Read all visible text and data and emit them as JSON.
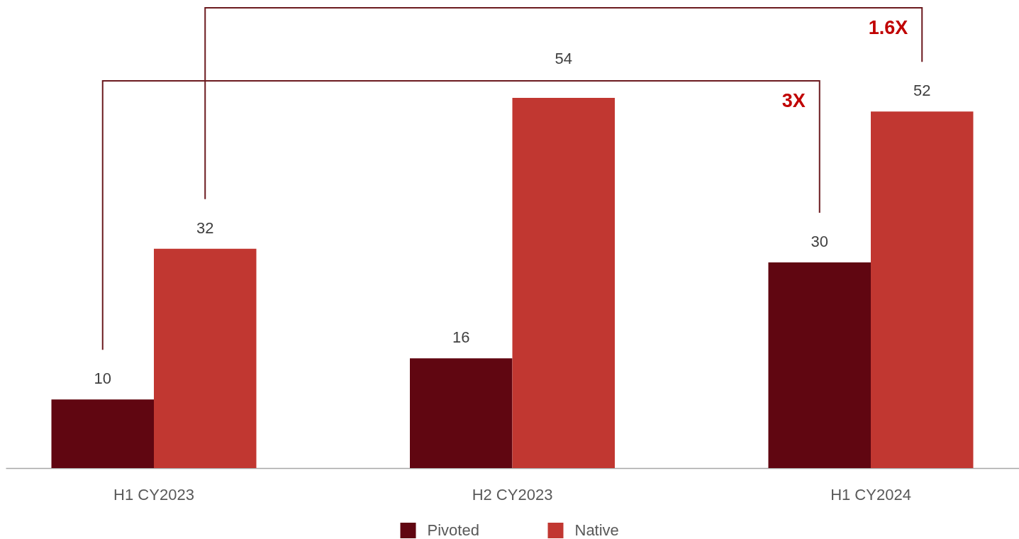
{
  "chart_data": {
    "type": "bar",
    "categories": [
      "H1 CY2023",
      "H2 CY2023",
      "H1 CY2024"
    ],
    "series": [
      {
        "name": "Pivoted",
        "color": "#600611",
        "values": [
          10,
          16,
          30
        ]
      },
      {
        "name": "Native",
        "color": "#c13731",
        "values": [
          32,
          54,
          52
        ]
      }
    ],
    "data_labels": true,
    "legend": "bottom",
    "tick_labels": "x",
    "annotations": [
      "3X",
      "1.6X"
    ]
  }
}
